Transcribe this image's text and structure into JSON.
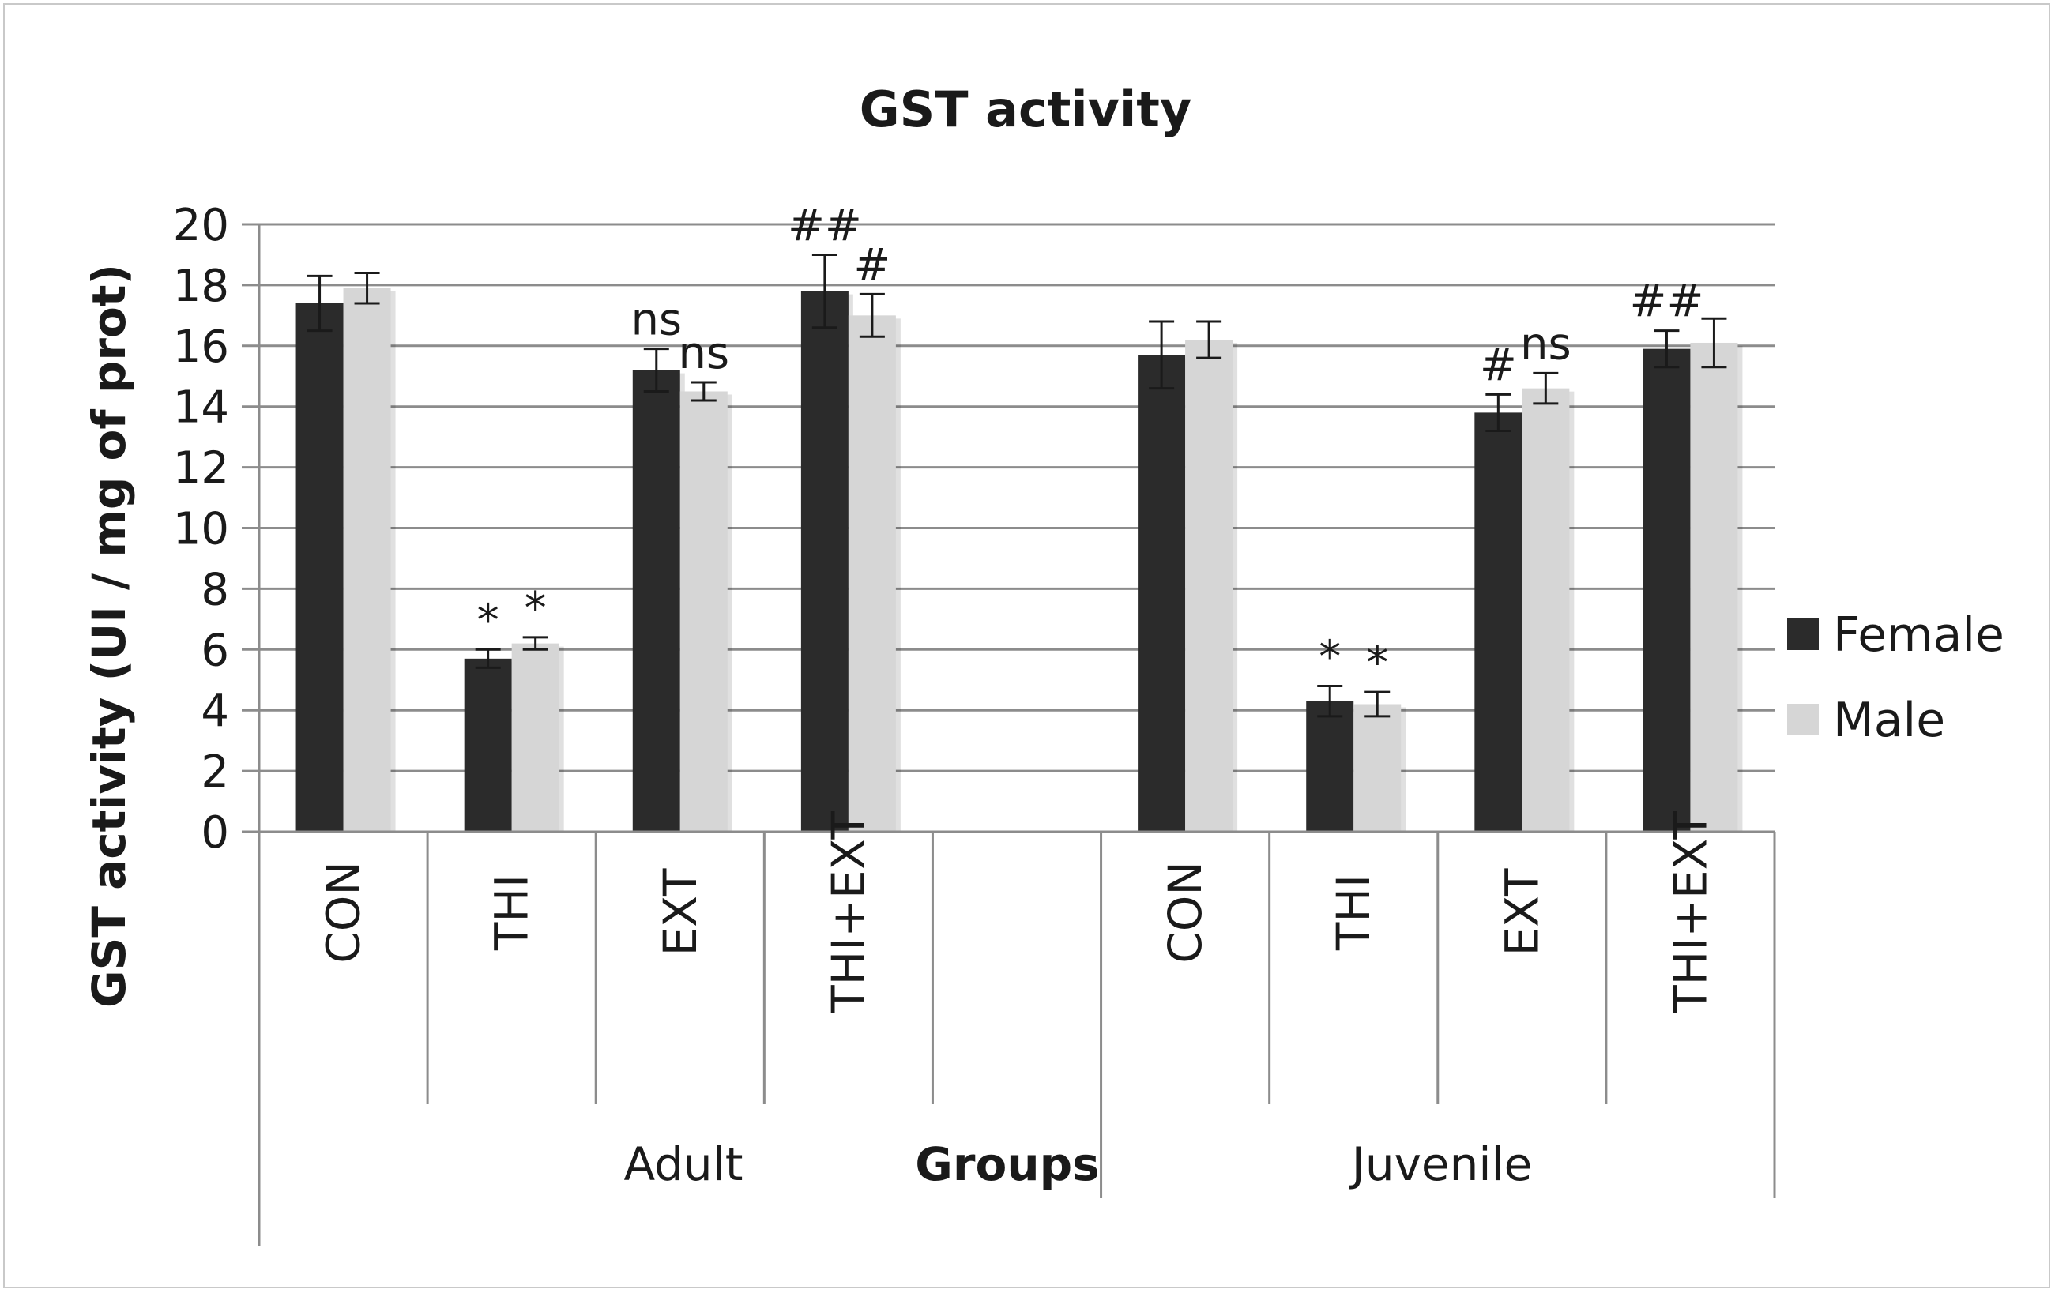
{
  "chart_data": {
    "type": "bar",
    "title": "GST activity",
    "xlabel": "Groups",
    "ylabel": "GST activity (UI / mg of prot)",
    "ylim": [
      0,
      20
    ],
    "yticks": [
      "0",
      "2",
      "4",
      "6",
      "8",
      "10",
      "12",
      "14",
      "16",
      "18",
      "20"
    ],
    "grid": true,
    "legend_position": "right",
    "groups": [
      {
        "name": "Adult",
        "categories": [
          "CON",
          "THI",
          "EXT",
          "THI+EXT",
          ""
        ]
      },
      {
        "name": "Juvenile",
        "categories": [
          "CON",
          "THI",
          "EXT",
          "THI+EXT"
        ]
      }
    ],
    "categories": [
      "CON",
      "THI",
      "EXT",
      "THI+EXT",
      "",
      "CON",
      "THI",
      "EXT",
      "THI+EXT"
    ],
    "series": [
      {
        "name": "Female",
        "color": "#2b2b2b",
        "values": [
          17.4,
          5.7,
          15.2,
          17.8,
          null,
          15.7,
          4.3,
          13.8,
          15.9
        ],
        "errors": [
          0.9,
          0.3,
          0.7,
          1.2,
          null,
          1.1,
          0.5,
          0.6,
          0.6
        ],
        "annotations": [
          "",
          "*",
          "ns",
          "##",
          "",
          "",
          "*",
          "#",
          "##"
        ]
      },
      {
        "name": "Male",
        "color": "#d6d6d6",
        "values": [
          17.9,
          6.2,
          14.5,
          17.0,
          null,
          16.2,
          4.2,
          14.6,
          16.1
        ],
        "errors": [
          0.5,
          0.2,
          0.3,
          0.7,
          null,
          0.6,
          0.4,
          0.5,
          0.8
        ],
        "annotations": [
          "",
          "*",
          "ns",
          "#",
          "",
          "",
          "*",
          "ns",
          ""
        ]
      }
    ]
  }
}
